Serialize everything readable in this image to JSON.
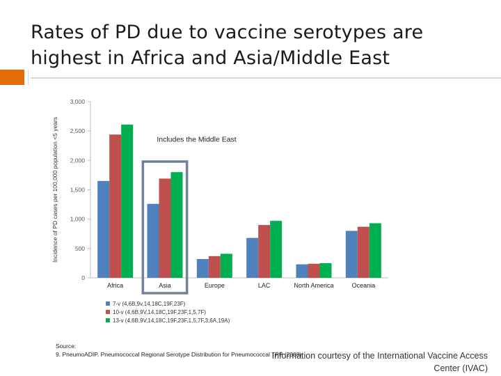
{
  "slide": {
    "title": "Rates of PD due to vaccine serotypes are highest in Africa and Asia/Middle East",
    "source_heading": "Source:",
    "source_ref": "9.   PneumoADIP. Pneumococcal Regional Serotype Distribution for Pneumococcal TPP (2008)",
    "credit": "Information courtesy of the International Vaccine Access Center (IVAC)",
    "accent_color": "#e36c0a"
  },
  "chart_data": {
    "type": "bar",
    "title": "",
    "xlabel": "",
    "ylabel": "Incidence of PD cases per 100,000 population <5 years",
    "ylim": [
      0,
      3000
    ],
    "yticks": [
      "0",
      "500",
      "1,000",
      "1,500",
      "2,000",
      "2,500",
      "3,000"
    ],
    "categories": [
      "Africa",
      "Asia",
      "Europe",
      "LAC",
      "North America",
      "Oceania"
    ],
    "series": [
      {
        "name": "7-v (4,6B,9v,14,18C,19F,23F)",
        "color": "#4f81bd",
        "values": [
          1650,
          1260,
          320,
          680,
          230,
          800
        ]
      },
      {
        "name": "10-v (4,6B,9V,14,18C,19F,23F,1,5,7F)",
        "color": "#c0504d",
        "values": [
          2440,
          1690,
          370,
          900,
          240,
          870
        ]
      },
      {
        "name": "13-v (4,6B,9V,14,18C,19F,23F,1,5,7F,3,6A,19A)",
        "color": "#00b050",
        "values": [
          2610,
          1800,
          410,
          970,
          250,
          930
        ]
      }
    ],
    "legend_position": "bottom-left",
    "grid": false,
    "annotation": {
      "text": "Includes the Middle East",
      "highlighted_category": "Asia",
      "box_color": "#6f8297"
    }
  }
}
